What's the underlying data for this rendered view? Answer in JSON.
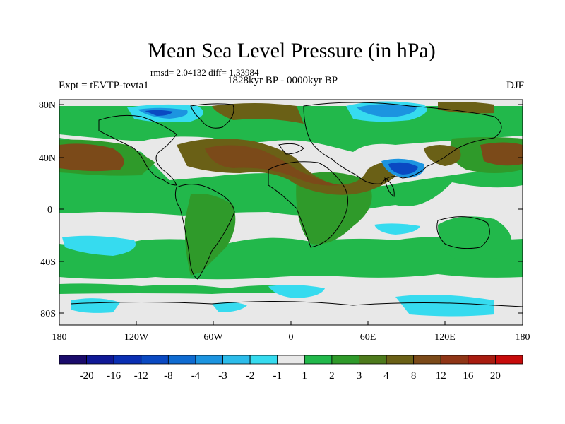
{
  "title": "Mean Sea Level Pressure (in hPa)",
  "stats": "rmsd= 2.04132 diff= 1.33984",
  "period": "1828kyr BP - 0000kyr BP",
  "experiment": "Expt = tEVTP-tevta1",
  "season": "DJF",
  "map": {
    "projection": "cylindrical-equidistant",
    "lon_range": [
      -180,
      180
    ],
    "lat_range": [
      -90,
      90
    ],
    "lat_labels": [
      "80N",
      "40N",
      "0",
      "40S",
      "80S"
    ],
    "lat_values": [
      80,
      40,
      0,
      -40,
      -80
    ],
    "lon_labels": [
      "180",
      "120W",
      "60W",
      "0",
      "60E",
      "120E",
      "180"
    ],
    "lon_values": [
      -180,
      -120,
      -60,
      0,
      60,
      120,
      180
    ]
  },
  "colorbar": {
    "colors": [
      "#1a0b6b",
      "#0f1896",
      "#0a2fb3",
      "#0a49c2",
      "#0f6bd1",
      "#1c94e0",
      "#2cbcea",
      "#36dbef",
      "#e8e8e8",
      "#22b84b",
      "#2f9a2a",
      "#4d7a1c",
      "#6a6016",
      "#7b4a19",
      "#8f3516",
      "#a81c10",
      "#c70b0b"
    ],
    "labels": [
      "-20",
      "-16",
      "-12",
      "-8",
      "-4",
      "-3",
      "-2",
      "-1",
      "1",
      "2",
      "3",
      "4",
      "8",
      "12",
      "16",
      "20"
    ]
  }
}
